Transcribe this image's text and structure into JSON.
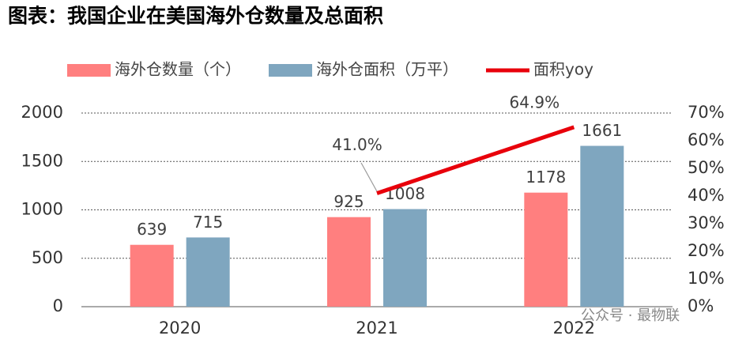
{
  "chart_data": {
    "type": "bar-line",
    "title": "图表：我国企业在美国海外仓数量及总面积",
    "categories": [
      "2020",
      "2021",
      "2022"
    ],
    "series": [
      {
        "name": "海外仓数量（个）",
        "color": "#ff7f7f",
        "type": "bar",
        "values": [
          639,
          925,
          1178
        ]
      },
      {
        "name": "海外仓面积（万平）",
        "color": "#7fa6bf",
        "type": "bar",
        "values": [
          715,
          1008,
          1661
        ]
      },
      {
        "name": "面积yoy",
        "color": "#e8000b",
        "type": "line",
        "axis": "y2",
        "values": [
          null,
          41.0,
          64.9
        ],
        "value_labels": [
          null,
          "41.0%",
          "64.9%"
        ]
      }
    ],
    "ylim": [
      0,
      2000
    ],
    "yticks": [
      0,
      500,
      1000,
      1500,
      2000
    ],
    "y2lim": [
      0,
      70
    ],
    "y2ticks": [
      {
        "value": 0,
        "label": "0%"
      },
      {
        "value": 10,
        "label": "10%"
      },
      {
        "value": 20,
        "label": "20%"
      },
      {
        "value": 30,
        "label": "30%"
      },
      {
        "value": 40,
        "label": "40%"
      },
      {
        "value": 50,
        "label": "50%"
      },
      {
        "value": 60,
        "label": "60%"
      },
      {
        "value": 70,
        "label": "70%"
      }
    ],
    "grid": true,
    "legend": "top",
    "watermark": "公众号 · 最物联"
  }
}
